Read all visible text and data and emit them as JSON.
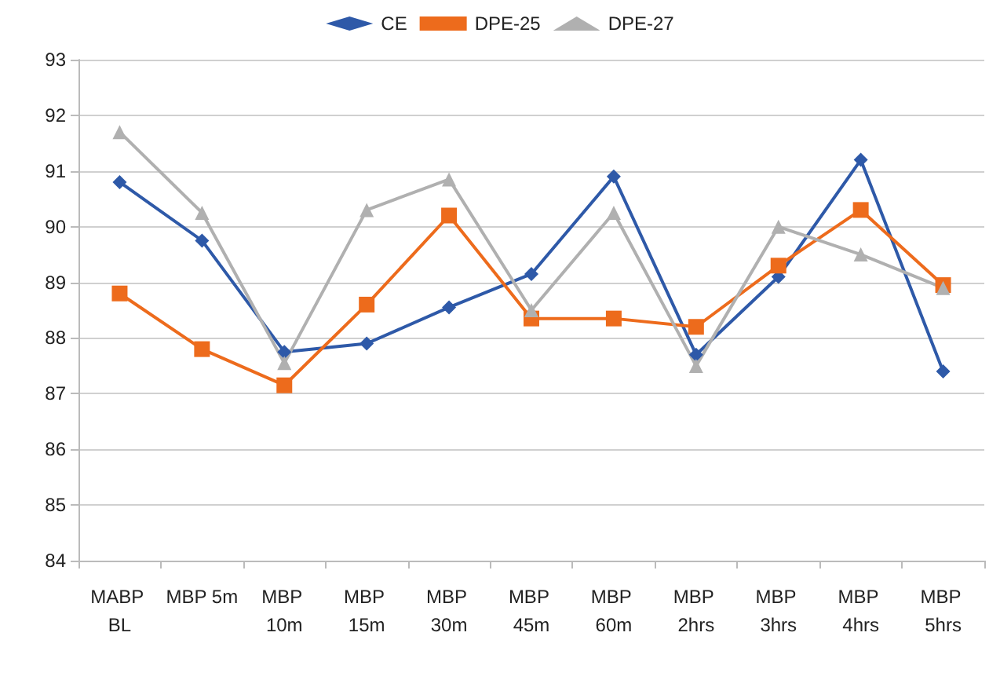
{
  "chart_data": {
    "type": "line",
    "categories": [
      "MABP BL",
      "MBP 5m",
      "MBP 10m",
      "MBP 15m",
      "MBP 30m",
      "MBP 45m",
      "MBP 60m",
      "MBP 2hrs",
      "MBP 3hrs",
      "MBP 4hrs",
      "MBP 5hrs"
    ],
    "series": [
      {
        "name": "CE",
        "color": "#2e59a8",
        "marker": "diamond",
        "values": [
          90.8,
          89.75,
          87.75,
          87.9,
          88.55,
          89.15,
          90.9,
          87.7,
          89.1,
          91.2,
          87.4
        ]
      },
      {
        "name": "DPE-25",
        "color": "#ed6b1c",
        "marker": "square",
        "values": [
          88.8,
          87.8,
          87.15,
          88.6,
          90.2,
          88.35,
          88.35,
          88.2,
          89.3,
          90.3,
          88.95
        ]
      },
      {
        "name": "DPE-27",
        "color": "#b0b0b0",
        "marker": "triangle",
        "values": [
          91.7,
          90.25,
          87.55,
          90.3,
          90.85,
          88.5,
          90.25,
          87.5,
          90.0,
          89.5,
          88.9
        ]
      }
    ],
    "ylim": [
      84,
      93
    ],
    "yticks": [
      84,
      85,
      86,
      87,
      88,
      89,
      90,
      91,
      92,
      93
    ],
    "grid": "y",
    "legend": "top",
    "line_style": "solid"
  }
}
